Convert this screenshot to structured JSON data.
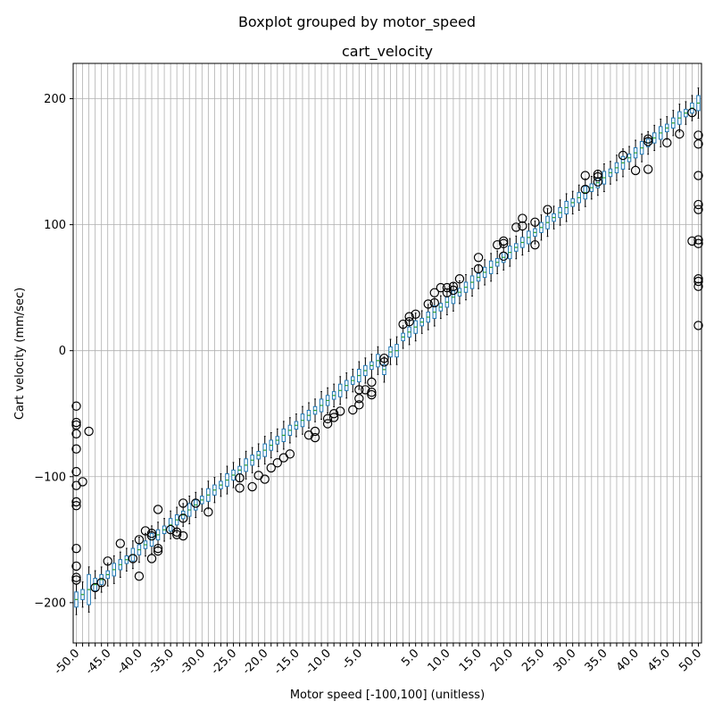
{
  "chart_data": {
    "type": "boxplot",
    "suptitle": "Boxplot grouped by motor_speed",
    "title": "cart_velocity",
    "xlabel": "Motor speed [-100,100] (unitless)",
    "ylabel": "Cart velocity (mm/sec)",
    "ylim": [
      -232,
      228
    ],
    "yticks": [
      -200,
      -100,
      0,
      100,
      200
    ],
    "grid": true,
    "box_color": "#1f77b4",
    "box_fill": "#ffffff",
    "median_color": "#2ca02c",
    "positions": [
      -50,
      -49,
      -48,
      -47,
      -46,
      -45,
      -44,
      -43,
      -42,
      -41,
      -40,
      -39,
      -38,
      -37,
      -36,
      -35,
      -34,
      -33,
      -32,
      -31,
      -30,
      -29,
      -28,
      -27,
      -26,
      -25,
      -24,
      -23,
      -22,
      -21,
      -20,
      -19,
      -18,
      -17,
      -16,
      -15,
      -14,
      -13,
      -12,
      -11,
      -10,
      -9,
      -8,
      -7,
      -6,
      -5,
      -4,
      -3,
      -2,
      -1,
      1,
      2,
      3,
      4,
      5,
      6,
      7,
      8,
      9,
      10,
      11,
      12,
      13,
      14,
      15,
      16,
      17,
      18,
      19,
      20,
      21,
      22,
      23,
      24,
      25,
      26,
      27,
      28,
      29,
      30,
      31,
      32,
      33,
      34,
      35,
      36,
      37,
      38,
      39,
      40,
      41,
      42,
      43,
      44,
      45,
      46,
      47,
      48,
      49,
      50
    ],
    "tick_labels": [
      {
        "x": -50,
        "label": "-50.0"
      },
      {
        "x": -45,
        "label": "-45.0"
      },
      {
        "x": -40,
        "label": "-40.0"
      },
      {
        "x": -35,
        "label": "-35.0"
      },
      {
        "x": -30,
        "label": "-30.0"
      },
      {
        "x": -25,
        "label": "-25.0"
      },
      {
        "x": -20,
        "label": "-20.0"
      },
      {
        "x": -15,
        "label": "-15.0"
      },
      {
        "x": -10,
        "label": "-10.0"
      },
      {
        "x": -5,
        "label": "-5.0"
      },
      {
        "x": 5,
        "label": "5.0"
      },
      {
        "x": 10,
        "label": "10.0"
      },
      {
        "x": 15,
        "label": "15.0"
      },
      {
        "x": 20,
        "label": "20.0"
      },
      {
        "x": 25,
        "label": "25.0"
      },
      {
        "x": 30,
        "label": "30.0"
      },
      {
        "x": 35,
        "label": "35.0"
      },
      {
        "x": 40,
        "label": "40.0"
      },
      {
        "x": 45,
        "label": "45.0"
      },
      {
        "x": 50,
        "label": "50.0"
      }
    ],
    "outliers": [
      {
        "x": -50,
        "y": [
          -44,
          -57,
          -59,
          -66,
          -78,
          -96,
          -107,
          -120,
          -123,
          -157,
          -171,
          -180,
          -182
        ]
      },
      {
        "x": -49,
        "y": [
          -104
        ]
      },
      {
        "x": -48,
        "y": [
          -64
        ]
      },
      {
        "x": -47,
        "y": [
          -188
        ]
      },
      {
        "x": -46,
        "y": [
          -184
        ]
      },
      {
        "x": -45,
        "y": [
          -167
        ]
      },
      {
        "x": -43,
        "y": [
          -153
        ]
      },
      {
        "x": -41,
        "y": [
          -165
        ]
      },
      {
        "x": -40,
        "y": [
          -150,
          -179
        ]
      },
      {
        "x": -39,
        "y": [
          -143
        ]
      },
      {
        "x": -38,
        "y": [
          -145,
          -147,
          -165
        ]
      },
      {
        "x": -37,
        "y": [
          -126,
          -157,
          -159
        ]
      },
      {
        "x": -35,
        "y": [
          -142
        ]
      },
      {
        "x": -34,
        "y": [
          -144,
          -146
        ]
      },
      {
        "x": -33,
        "y": [
          -121,
          -133,
          -147
        ]
      },
      {
        "x": -31,
        "y": [
          -121
        ]
      },
      {
        "x": -29,
        "y": [
          -128
        ]
      },
      {
        "x": -24,
        "y": [
          -101,
          -109
        ]
      },
      {
        "x": -22,
        "y": [
          -108
        ]
      },
      {
        "x": -21,
        "y": [
          -99
        ]
      },
      {
        "x": -20,
        "y": [
          -102
        ]
      },
      {
        "x": -19,
        "y": [
          -93
        ]
      },
      {
        "x": -18,
        "y": [
          -89
        ]
      },
      {
        "x": -17,
        "y": [
          -85
        ]
      },
      {
        "x": -16,
        "y": [
          -82
        ]
      },
      {
        "x": -13,
        "y": [
          -67
        ]
      },
      {
        "x": -12,
        "y": [
          -64,
          -69
        ]
      },
      {
        "x": -10,
        "y": [
          -54,
          -58
        ]
      },
      {
        "x": -9,
        "y": [
          -50,
          -53
        ]
      },
      {
        "x": -8,
        "y": [
          -48
        ]
      },
      {
        "x": -6,
        "y": [
          -47
        ]
      },
      {
        "x": -5,
        "y": [
          -31,
          -38,
          -43
        ]
      },
      {
        "x": -4,
        "y": [
          -31
        ]
      },
      {
        "x": -3,
        "y": [
          -25,
          -33,
          -35
        ]
      },
      {
        "x": -1,
        "y": [
          -6,
          -9
        ]
      },
      {
        "x": 3,
        "y": [
          21
        ]
      },
      {
        "x": 4,
        "y": [
          23,
          27
        ]
      },
      {
        "x": 5,
        "y": [
          29
        ]
      },
      {
        "x": 7,
        "y": [
          37
        ]
      },
      {
        "x": 8,
        "y": [
          38,
          46
        ]
      },
      {
        "x": 9,
        "y": [
          50
        ]
      },
      {
        "x": 10,
        "y": [
          46,
          50
        ]
      },
      {
        "x": 11,
        "y": [
          48,
          51
        ]
      },
      {
        "x": 12,
        "y": [
          57
        ]
      },
      {
        "x": 15,
        "y": [
          65,
          74
        ]
      },
      {
        "x": 18,
        "y": [
          84
        ]
      },
      {
        "x": 19,
        "y": [
          75,
          85,
          87
        ]
      },
      {
        "x": 21,
        "y": [
          98
        ]
      },
      {
        "x": 22,
        "y": [
          99,
          105
        ]
      },
      {
        "x": 24,
        "y": [
          84,
          102
        ]
      },
      {
        "x": 26,
        "y": [
          112
        ]
      },
      {
        "x": 32,
        "y": [
          128,
          139
        ]
      },
      {
        "x": 34,
        "y": [
          134,
          138,
          140
        ]
      },
      {
        "x": 38,
        "y": [
          155
        ]
      },
      {
        "x": 40,
        "y": [
          143
        ]
      },
      {
        "x": 42,
        "y": [
          144,
          166,
          168
        ]
      },
      {
        "x": 45,
        "y": [
          165
        ]
      },
      {
        "x": 47,
        "y": [
          172
        ]
      },
      {
        "x": 49,
        "y": [
          87,
          189
        ]
      },
      {
        "x": 50,
        "y": [
          20,
          51,
          55,
          57,
          85,
          88,
          112,
          116,
          139,
          164,
          171
        ]
      }
    ]
  }
}
